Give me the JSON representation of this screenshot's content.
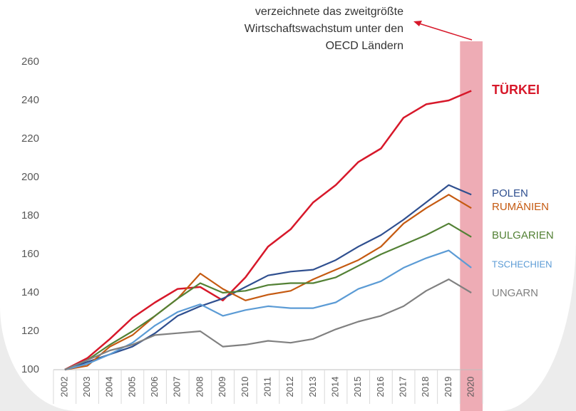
{
  "chart_data": {
    "type": "line",
    "annotation": [
      "verzeichnete das zweitgrößte",
      "Wirtschaftswachstum unter den",
      "OECD Ländern"
    ],
    "categories": [
      "2002",
      "2003",
      "2004",
      "2005",
      "2006",
      "2007",
      "2008",
      "2009",
      "2010",
      "2011",
      "2012",
      "2013",
      "2014",
      "2015",
      "2016",
      "2017",
      "2018",
      "2019",
      "2020"
    ],
    "ylim": [
      100,
      260
    ],
    "yticks": [
      100,
      120,
      140,
      160,
      180,
      200,
      220,
      240,
      260
    ],
    "grid": false,
    "series": [
      {
        "name": "TÜRKEI",
        "color": "#d7182a",
        "values": [
          100,
          106,
          116,
          127,
          135,
          142,
          143,
          136,
          148,
          164,
          173,
          187,
          196,
          208,
          215,
          231,
          238,
          240,
          245
        ]
      },
      {
        "name": "POLEN",
        "color": "#2f4f8f",
        "values": [
          100,
          104,
          108,
          112,
          119,
          128,
          133,
          137,
          143,
          149,
          151,
          152,
          157,
          164,
          170,
          178,
          187,
          196,
          191
        ]
      },
      {
        "name": "RUMÄNIEN",
        "color": "#c55a11",
        "values": [
          100,
          102,
          112,
          118,
          128,
          137,
          150,
          142,
          136,
          139,
          141,
          147,
          152,
          157,
          164,
          176,
          184,
          191,
          184
        ]
      },
      {
        "name": "BULGARIEN",
        "color": "#538135",
        "values": [
          100,
          105,
          113,
          120,
          128,
          137,
          145,
          140,
          141,
          144,
          145,
          145,
          148,
          154,
          160,
          165,
          170,
          176,
          169
        ]
      },
      {
        "name": "TSCHECHIEN",
        "color": "#5b9bd5",
        "values": [
          100,
          103,
          108,
          114,
          123,
          130,
          134,
          128,
          131,
          133,
          132,
          132,
          135,
          142,
          146,
          153,
          158,
          162,
          153
        ]
      },
      {
        "name": "UNGARN",
        "color": "#808080",
        "values": [
          100,
          105,
          110,
          113,
          118,
          119,
          120,
          112,
          113,
          115,
          114,
          116,
          121,
          125,
          128,
          133,
          141,
          147,
          140
        ]
      }
    ]
  }
}
